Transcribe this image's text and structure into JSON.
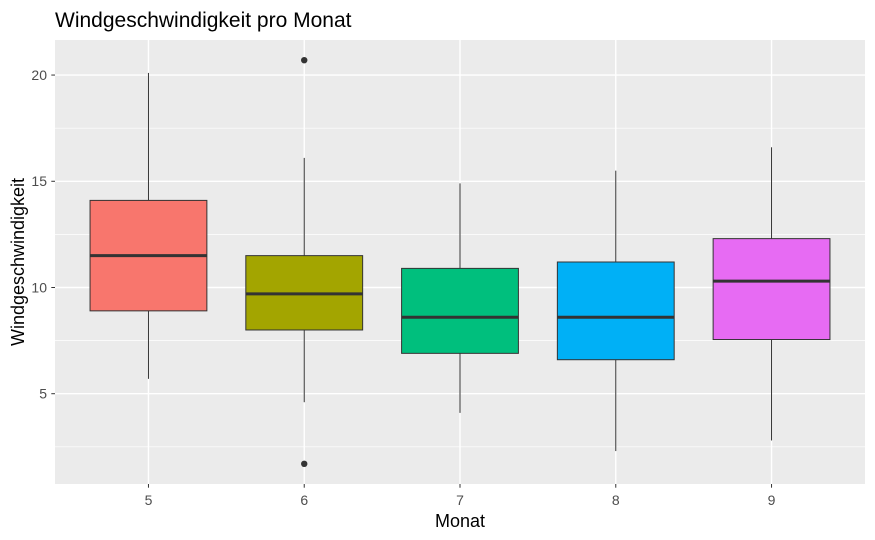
{
  "chart_data": {
    "type": "boxplot",
    "title": "Windgeschwindigkeit pro Monat",
    "xlabel": "Monat",
    "ylabel": "Windgeschwindigkeit",
    "categories": [
      "5",
      "6",
      "7",
      "8",
      "9"
    ],
    "boxes": [
      {
        "min": 5.7,
        "q1": 8.9,
        "median": 11.5,
        "q3": 14.1,
        "max": 20.1,
        "outliers": [],
        "fill": "#F8766D"
      },
      {
        "min": 4.6,
        "q1": 8.0,
        "median": 9.7,
        "q3": 11.5,
        "max": 16.1,
        "outliers": [
          1.7,
          20.7
        ],
        "fill": "#A3A500"
      },
      {
        "min": 4.1,
        "q1": 6.9,
        "median": 8.6,
        "q3": 10.9,
        "max": 14.9,
        "outliers": [],
        "fill": "#00BF7D"
      },
      {
        "min": 2.3,
        "q1": 6.6,
        "median": 8.6,
        "q3": 11.2,
        "max": 15.5,
        "outliers": [],
        "fill": "#00B0F6"
      },
      {
        "min": 2.8,
        "q1": 7.55,
        "median": 10.3,
        "q3": 12.3,
        "max": 16.6,
        "outliers": [],
        "fill": "#E76BF3"
      }
    ],
    "yticks": [
      5,
      10,
      15,
      20
    ],
    "ylim": [
      0.75,
      21.65
    ],
    "grid": true,
    "legend": false
  }
}
